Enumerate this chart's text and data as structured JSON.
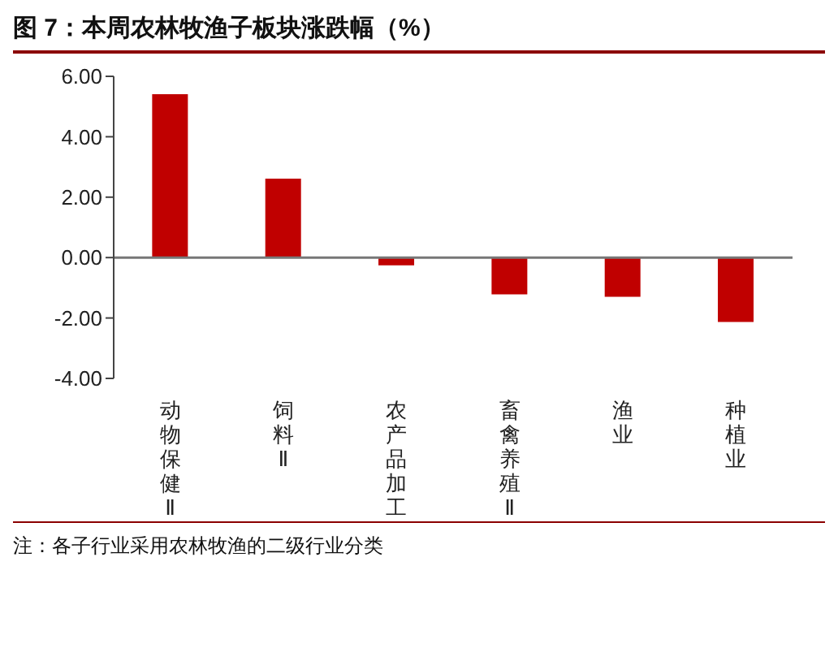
{
  "chart_data": {
    "type": "bar",
    "title": "图 7：本周农林牧渔子板块涨跌幅（%）",
    "categories": [
      "动物保健Ⅱ",
      "饲料Ⅱ",
      "农产品加工",
      "畜禽养殖Ⅱ",
      "渔业",
      "种植业"
    ],
    "series": [
      {
        "color": "#c00000",
        "values": [
          5.41,
          2.61,
          -0.26,
          -1.22,
          -1.3,
          -2.13
        ]
      }
    ],
    "ylim": [
      -4,
      6
    ],
    "yticks": [
      {
        "value": -4,
        "label": "-4.00"
      },
      {
        "value": -2,
        "label": "-2.00"
      },
      {
        "value": 0,
        "label": "0.00"
      },
      {
        "value": 2,
        "label": "2.00"
      },
      {
        "value": 4,
        "label": "4.00"
      },
      {
        "value": 6,
        "label": "6.00"
      }
    ],
    "ref_lines": [
      {
        "axis": "y",
        "value": 0,
        "color": "#777777"
      }
    ],
    "grid": false,
    "legend": false,
    "annotations": [
      "注：各子行业采用农林牧渔的二级行业分类"
    ]
  }
}
